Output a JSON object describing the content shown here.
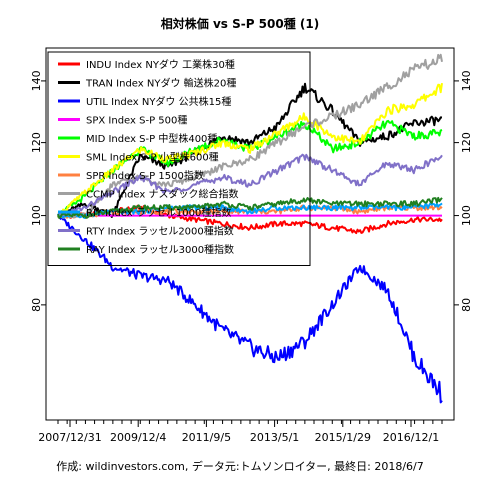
{
  "chart_data": {
    "type": "line",
    "title": "相対株価 vs S-P 500種 (1)",
    "caption": "作成: wildinvestors.com, データ元:トムソンロイター, 最終日: 2018/6/7",
    "x_tick_labels": [
      "2007/12/31",
      "2009/12/4",
      "2011/9/5",
      "2013/5/1",
      "2015/1/29",
      "2016/12/1"
    ],
    "x_tick_positions": [
      0.0,
      0.2,
      0.4,
      0.6,
      0.8,
      1.0
    ],
    "y_ticks": [
      80,
      100,
      120,
      140
    ],
    "y_tick_labels": [
      "80",
      "100",
      "120",
      "140"
    ],
    "ylim": [
      60,
      152
    ],
    "log_scale": true,
    "series": [
      {
        "name": "INDU Index NYダウ 工業株30種",
        "color": "#ff0000",
        "values": [
          100,
          100,
          101,
          102,
          100,
          99,
          98,
          97,
          98,
          98,
          97,
          96,
          98,
          99,
          99
        ]
      },
      {
        "name": "TRAN Index NYダウ 輸送株20種",
        "color": "#000000",
        "values": [
          100,
          103,
          100,
          116,
          113,
          117,
          122,
          120,
          125,
          138,
          130,
          120,
          122,
          126,
          127
        ]
      },
      {
        "name": "UTIL Index NYダウ 公共株15種",
        "color": "#0000ff",
        "values": [
          100,
          94,
          88,
          86,
          85,
          80,
          75,
          72,
          70,
          73,
          80,
          88,
          83,
          70,
          64
        ]
      },
      {
        "name": "SPX Index S-P 500種",
        "color": "#ff00ff",
        "values": [
          100,
          100,
          100,
          100,
          100,
          100,
          100,
          100,
          100,
          100,
          100,
          100,
          100,
          100,
          100
        ]
      },
      {
        "name": "MID Index S-P 中型株400種",
        "color": "#00ff00",
        "values": [
          100,
          105,
          112,
          118,
          114,
          118,
          121,
          118,
          122,
          126,
          118,
          120,
          126,
          122,
          123
        ]
      },
      {
        "name": "SML Index S-P 小型株600種",
        "color": "#ffff00",
        "values": [
          100,
          106,
          112,
          118,
          115,
          117,
          120,
          118,
          123,
          128,
          122,
          120,
          130,
          132,
          138
        ]
      },
      {
        "name": "SPR Index S-P 1500指数",
        "color": "#ff8040",
        "values": [
          100,
          100,
          101,
          101,
          101,
          101,
          101,
          101,
          101,
          102,
          102,
          101,
          102,
          102,
          102
        ]
      },
      {
        "name": "CCMP Index ナスダック総合指数",
        "color": "#a0a0a0",
        "values": [
          100,
          100,
          108,
          110,
          108,
          110,
          113,
          115,
          120,
          125,
          128,
          132,
          138,
          144,
          148
        ]
      },
      {
        "name": "RIY Index ラッセル1000種指数",
        "color": "#00a0ff",
        "values": [
          100,
          100,
          101,
          101,
          102,
          102,
          102,
          101,
          102,
          102,
          102,
          102,
          102,
          102,
          103
        ]
      },
      {
        "name": "RTY Index ラッセル2000種指数",
        "color": "#8070c8",
        "values": [
          100,
          102,
          106,
          110,
          106,
          108,
          110,
          108,
          112,
          116,
          112,
          108,
          114,
          112,
          116
        ]
      },
      {
        "name": "RAY Index ラッセル3000種指数",
        "color": "#208020",
        "values": [
          100,
          100,
          101,
          102,
          102,
          102,
          103,
          102,
          103,
          104,
          103,
          103,
          103,
          103,
          104
        ]
      }
    ]
  }
}
